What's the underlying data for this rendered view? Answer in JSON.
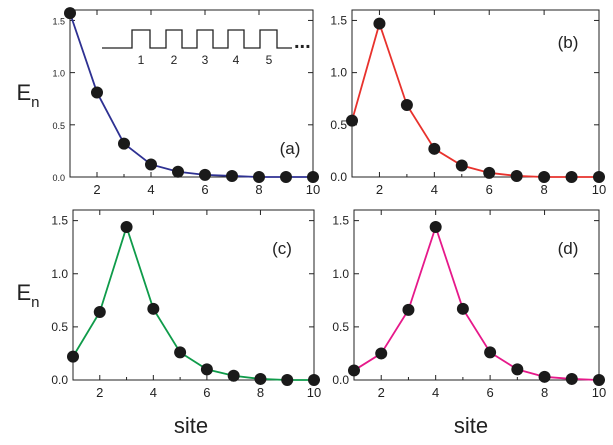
{
  "figure": {
    "ylabel": "E",
    "ylabel_sub": "n",
    "xlabel": "site"
  },
  "inset": {
    "labels": [
      "1",
      "2",
      "3",
      "4",
      "5"
    ],
    "ellipsis": "..."
  },
  "chart_data": [
    {
      "type": "line",
      "panel_label": "(a)",
      "color": "#2e3192",
      "xlim": [
        1,
        10
      ],
      "ylim": [
        0,
        1.6
      ],
      "x_ticks": [
        2,
        4,
        6,
        8,
        10
      ],
      "y_ticks": [
        0.0,
        0.5,
        1.0,
        1.5
      ],
      "y_tick_labels": [
        "0.0",
        "0.5",
        "1.0",
        "1.5"
      ],
      "x": [
        1,
        2,
        3,
        4,
        5,
        6,
        7,
        8,
        9,
        10
      ],
      "y": [
        1.57,
        0.81,
        0.32,
        0.12,
        0.05,
        0.02,
        0.01,
        0.0,
        0.0,
        0.0
      ]
    },
    {
      "type": "line",
      "panel_label": "(b)",
      "color": "#e8322d",
      "xlim": [
        1,
        10
      ],
      "ylim": [
        0,
        1.6
      ],
      "x_ticks": [
        2,
        4,
        6,
        8,
        10
      ],
      "y_ticks": [
        0.0,
        0.5,
        1.0,
        1.5
      ],
      "y_tick_labels": [
        "0.0",
        "0.5",
        "1.0",
        "1.5"
      ],
      "x": [
        1,
        2,
        3,
        4,
        5,
        6,
        7,
        8,
        9,
        10
      ],
      "y": [
        0.54,
        1.47,
        0.69,
        0.27,
        0.11,
        0.04,
        0.01,
        0.0,
        0.0,
        0.0
      ]
    },
    {
      "type": "line",
      "panel_label": "(c)",
      "color": "#0f9b4a",
      "xlim": [
        1,
        10
      ],
      "ylim": [
        0,
        1.6
      ],
      "x_ticks": [
        2,
        4,
        6,
        8,
        10
      ],
      "y_ticks": [
        0.0,
        0.5,
        1.0,
        1.5
      ],
      "y_tick_labels": [
        "0.0",
        "0.5",
        "1.0",
        "1.5"
      ],
      "x": [
        1,
        2,
        3,
        4,
        5,
        6,
        7,
        8,
        9,
        10
      ],
      "y": [
        0.22,
        0.64,
        1.44,
        0.67,
        0.26,
        0.1,
        0.04,
        0.01,
        0.0,
        0.0
      ]
    },
    {
      "type": "line",
      "panel_label": "(d)",
      "color": "#e6198a",
      "xlim": [
        1,
        10
      ],
      "ylim": [
        0,
        1.6
      ],
      "x_ticks": [
        2,
        4,
        6,
        8,
        10
      ],
      "y_ticks": [
        0.0,
        0.5,
        1.0,
        1.5
      ],
      "y_tick_labels": [
        "0.0",
        "0.5",
        "1.0",
        "1.5"
      ],
      "x": [
        1,
        2,
        3,
        4,
        5,
        6,
        7,
        8,
        9,
        10
      ],
      "y": [
        0.09,
        0.25,
        0.66,
        1.44,
        0.67,
        0.26,
        0.1,
        0.03,
        0.01,
        0.0
      ]
    }
  ]
}
